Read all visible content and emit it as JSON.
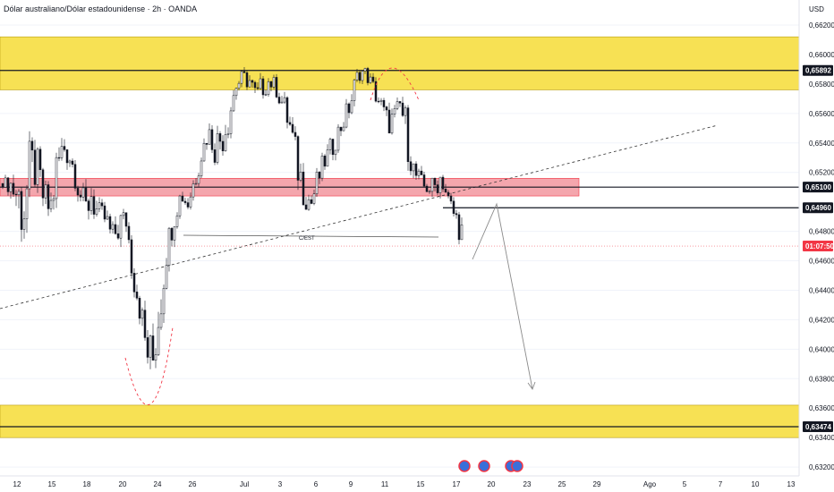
{
  "header": {
    "title": "Dólar australiano/Dólar estadounidense · 2h · OANDA",
    "currency": "USD"
  },
  "chart_data": {
    "type": "candlestick",
    "y_ticks": [
      "0,66200",
      "0,66000",
      "0,65800",
      "0,65600",
      "0,65400",
      "0,65200",
      "0,64800",
      "0,64600",
      "0,64400",
      "0,64200",
      "0,64000",
      "0,63800",
      "0,63600",
      "0,63400",
      "0,63200"
    ],
    "y_tick_values": [
      0.662,
      0.66,
      0.658,
      0.656,
      0.654,
      0.652,
      0.648,
      0.646,
      0.644,
      0.642,
      0.64,
      0.638,
      0.636,
      0.634,
      0.632
    ],
    "ylim": [
      0.6314,
      0.6637
    ],
    "x_ticks": [
      "12",
      "15",
      "18",
      "20",
      "24",
      "26",
      "Jul",
      "3",
      "6",
      "9",
      "11",
      "15",
      "17",
      "20",
      "23",
      "25",
      "29",
      "Ago",
      "5",
      "7",
      "10",
      "13"
    ],
    "x_tick_positions": [
      19,
      58,
      97,
      137,
      176,
      215,
      273,
      313,
      353,
      392,
      430,
      470,
      510,
      549,
      589,
      628,
      667,
      726,
      765,
      805,
      844,
      884
    ],
    "level_labels": [
      {
        "text": "0,65892",
        "value": 0.65892,
        "color": "#131722"
      },
      {
        "text": "0,65100",
        "value": 0.651,
        "color": "#131722"
      },
      {
        "text": "0,64960",
        "value": 0.6496,
        "color": "#131722"
      },
      {
        "text": "0,63474",
        "value": 0.63474,
        "color": "#131722"
      },
      {
        "text": "01:07:50",
        "value": 0.647,
        "color": "#f23645"
      }
    ],
    "zones": [
      {
        "from": 0.6576,
        "to": 0.6612,
        "color": "#f7e154"
      },
      {
        "from": 0.6504,
        "to": 0.6516,
        "color": "#f4a6ad"
      },
      {
        "from": 0.634,
        "to": 0.6362,
        "color": "#f7e154"
      }
    ],
    "annotations": [
      "C/EST"
    ],
    "candles": {
      "up_color": "#131722",
      "down_color": "#131722",
      "anchors": [
        [
          0.651,
          0.6515
        ],
        [
          0.6505,
          0.652
        ],
        [
          0.6485,
          0.6528
        ],
        [
          0.647,
          0.6515
        ],
        [
          0.6495,
          0.6545
        ],
        [
          0.651,
          0.6538
        ],
        [
          0.6488,
          0.6515
        ],
        [
          0.648,
          0.651
        ],
        [
          0.6505,
          0.6545
        ],
        [
          0.6525,
          0.655
        ],
        [
          0.6522,
          0.6535
        ],
        [
          0.65,
          0.6525
        ],
        [
          0.648,
          0.6505
        ],
        [
          0.649,
          0.6525
        ],
        [
          0.6475,
          0.65
        ],
        [
          0.648,
          0.6498
        ],
        [
          0.6465,
          0.6485
        ],
        [
          0.647,
          0.65
        ],
        [
          0.648,
          0.6495
        ],
        [
          0.644,
          0.647
        ],
        [
          0.6418,
          0.644
        ],
        [
          0.638,
          0.6418
        ],
        [
          0.6376,
          0.641
        ],
        [
          0.641,
          0.646
        ],
        [
          0.646,
          0.648
        ],
        [
          0.648,
          0.65
        ],
        [
          0.65,
          0.651
        ],
        [
          0.649,
          0.6508
        ],
        [
          0.6505,
          0.6525
        ],
        [
          0.6525,
          0.654
        ],
        [
          0.654,
          0.6555
        ],
        [
          0.6525,
          0.655
        ],
        [
          0.653,
          0.656
        ],
        [
          0.6545,
          0.6572
        ],
        [
          0.6572,
          0.6585
        ],
        [
          0.6578,
          0.659
        ],
        [
          0.6575,
          0.659
        ],
        [
          0.656,
          0.658
        ],
        [
          0.657,
          0.6588
        ],
        [
          0.6575,
          0.659
        ],
        [
          0.657,
          0.6582
        ],
        [
          0.6555,
          0.6575
        ],
        [
          0.654,
          0.656
        ],
        [
          0.651,
          0.654
        ],
        [
          0.6495,
          0.652
        ],
        [
          0.6492,
          0.6505
        ],
        [
          0.6505,
          0.6525
        ],
        [
          0.652,
          0.6535
        ],
        [
          0.6528,
          0.6545
        ],
        [
          0.654,
          0.6555
        ],
        [
          0.655,
          0.6565
        ],
        [
          0.656,
          0.6582
        ],
        [
          0.6582,
          0.6595
        ],
        [
          0.6583,
          0.6592
        ],
        [
          0.657,
          0.6585
        ],
        [
          0.656,
          0.6575
        ],
        [
          0.6545,
          0.6565
        ],
        [
          0.6545,
          0.6565
        ],
        [
          0.656,
          0.6572
        ],
        [
          0.653,
          0.6565
        ],
        [
          0.651,
          0.653
        ],
        [
          0.6505,
          0.652
        ],
        [
          0.6505,
          0.6512
        ],
        [
          0.65,
          0.652
        ],
        [
          0.651,
          0.6525
        ],
        [
          0.6495,
          0.6508
        ],
        [
          0.648,
          0.65
        ],
        [
          0.647,
          0.649
        ]
      ]
    }
  }
}
